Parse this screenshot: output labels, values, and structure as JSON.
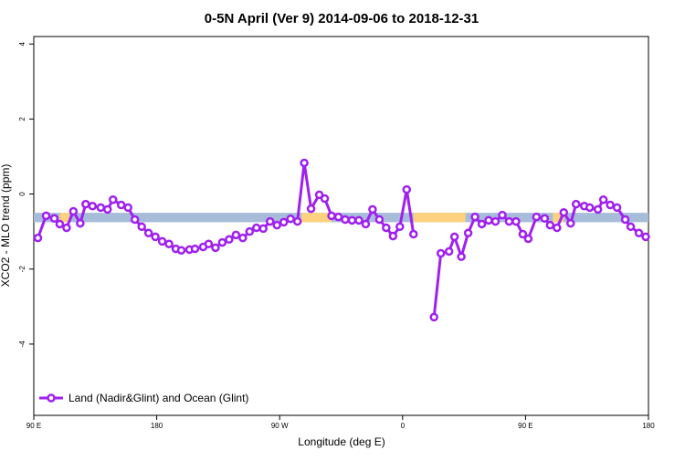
{
  "chart_data": {
    "type": "line",
    "title": "0-5N April (Ver 9)   2014-09-06 to 2018-12-31",
    "x_label": "Longitude (deg E)",
    "y_label": "XCO2 - MLO trend (ppm)",
    "xlim": [
      90,
      540
    ],
    "xticks": [
      {
        "value": 90,
        "label": "90 E"
      },
      180,
      {
        "value": 270,
        "label": "90 W"
      },
      {
        "value": 360,
        "label": "0"
      },
      {
        "value": 450,
        "label": "90 E"
      },
      {
        "value": 540,
        "label": "180"
      }
    ],
    "ylim": [
      -5.9,
      4.2
    ],
    "yticks": [
      4,
      2,
      0,
      -2,
      -4
    ],
    "grid": false,
    "legend": "bottom-left",
    "band": {
      "ymin": -0.75,
      "ymax": -0.5,
      "segments": [
        {
          "xlim": [
            90,
            540
          ],
          "color": "#a7bcd9"
        },
        {
          "xlim": [
            109,
            116
          ],
          "color": "#fdd27e"
        },
        {
          "xlim": [
            286,
            308
          ],
          "color": "#fdd27e"
        },
        {
          "xlim": [
            368,
            406
          ],
          "color": "#fdd27e"
        },
        {
          "xlim": [
            470,
            478
          ],
          "color": "#fdd27e"
        }
      ]
    },
    "x": [
      93,
      99,
      105,
      109,
      114,
      119,
      124,
      128,
      133,
      139,
      144,
      148,
      154,
      159,
      164,
      169,
      174,
      179,
      184,
      189,
      194,
      198,
      204,
      208,
      214,
      218,
      223,
      228,
      233,
      238,
      243,
      248,
      253,
      258,
      263,
      268,
      273,
      278,
      283,
      288,
      293,
      299,
      303,
      308,
      313,
      318,
      323,
      328,
      333,
      338,
      343,
      348,
      353,
      358,
      363,
      368,
      370,
      383,
      388,
      394,
      398,
      403,
      408,
      413,
      418,
      423,
      428,
      433,
      438,
      443,
      448,
      452,
      458,
      464,
      468,
      473,
      478,
      483,
      487,
      493,
      497,
      503,
      507,
      512,
      517,
      523,
      527,
      533,
      538
    ],
    "series": [
      {
        "name": "Land (Nadir&Glint) and Ocean (Glint)",
        "color": "#a020f0",
        "values": [
          -1.17,
          -0.58,
          -0.65,
          -0.8,
          -0.9,
          -0.46,
          -0.78,
          -0.27,
          -0.32,
          -0.36,
          -0.41,
          -0.15,
          -0.29,
          -0.36,
          -0.68,
          -0.87,
          -1.04,
          -1.14,
          -1.26,
          -1.33,
          -1.46,
          -1.5,
          -1.48,
          -1.46,
          -1.41,
          -1.33,
          -1.43,
          -1.29,
          -1.21,
          -1.09,
          -1.17,
          -1.0,
          -0.9,
          -0.92,
          -0.73,
          -0.83,
          -0.75,
          -0.66,
          -0.73,
          0.83,
          -0.39,
          -0.02,
          -0.12,
          -0.58,
          -0.61,
          -0.68,
          -0.7,
          -0.7,
          -0.8,
          -0.41,
          -0.68,
          -0.9,
          -1.12,
          -0.87,
          0.12,
          -1.07,
          null,
          -3.28,
          -1.58,
          -1.53,
          -1.14,
          -1.67,
          -1.04,
          -0.61,
          -0.8,
          -0.7,
          -0.73,
          -0.56,
          -0.73,
          -0.73,
          -1.07,
          -1.19,
          -0.61,
          -0.65,
          -0.83,
          -0.9,
          -0.49,
          -0.78,
          -0.27,
          -0.32,
          -0.36,
          -0.41,
          -0.15,
          -0.29,
          -0.36,
          -0.68,
          -0.87,
          -1.04,
          -1.14
        ]
      }
    ]
  }
}
